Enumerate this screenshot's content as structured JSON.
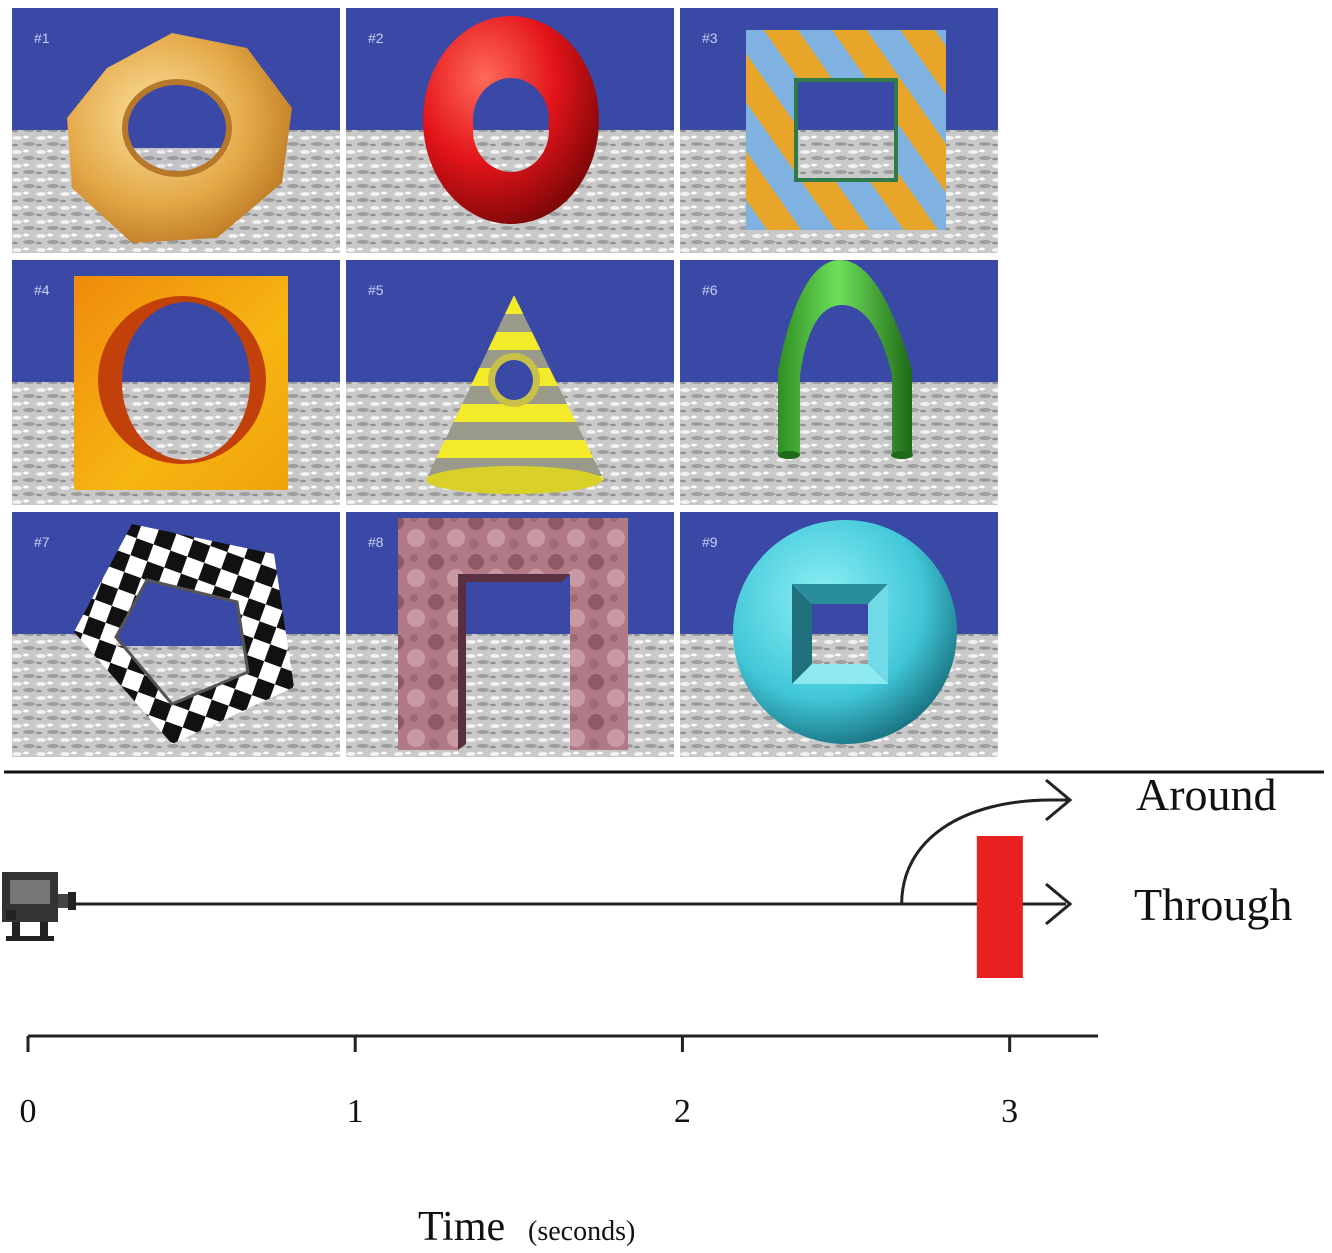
{
  "stimuli": {
    "panels": [
      {
        "label": "#1",
        "shape": "wood-torus-icon"
      },
      {
        "label": "#2",
        "shape": "red-torus-icon"
      },
      {
        "label": "#3",
        "shape": "striped-square-frame-icon"
      },
      {
        "label": "#4",
        "shape": "orange-block-with-hole-icon"
      },
      {
        "label": "#5",
        "shape": "striped-cone-with-hole-icon"
      },
      {
        "label": "#6",
        "shape": "green-arch-icon"
      },
      {
        "label": "#7",
        "shape": "checkered-pentagon-icon"
      },
      {
        "label": "#8",
        "shape": "marbled-gate-icon"
      },
      {
        "label": "#9",
        "shape": "cyan-disc-with-square-hole-icon"
      }
    ],
    "colors": {
      "sky": "#3a48a6",
      "ground": "#c8c8c8"
    }
  },
  "timeline": {
    "ticks": [
      "0",
      "1",
      "2",
      "3"
    ],
    "tick_values": [
      0,
      1,
      2,
      3
    ],
    "axis_range": [
      0,
      3.27
    ],
    "obstacle_time": 2.97,
    "branch_time": 2.67,
    "path_labels": {
      "around": "Around",
      "through": "Through"
    },
    "axis_title": "Time",
    "axis_unit": "(seconds)",
    "obstacle_color": "#e8201f"
  }
}
